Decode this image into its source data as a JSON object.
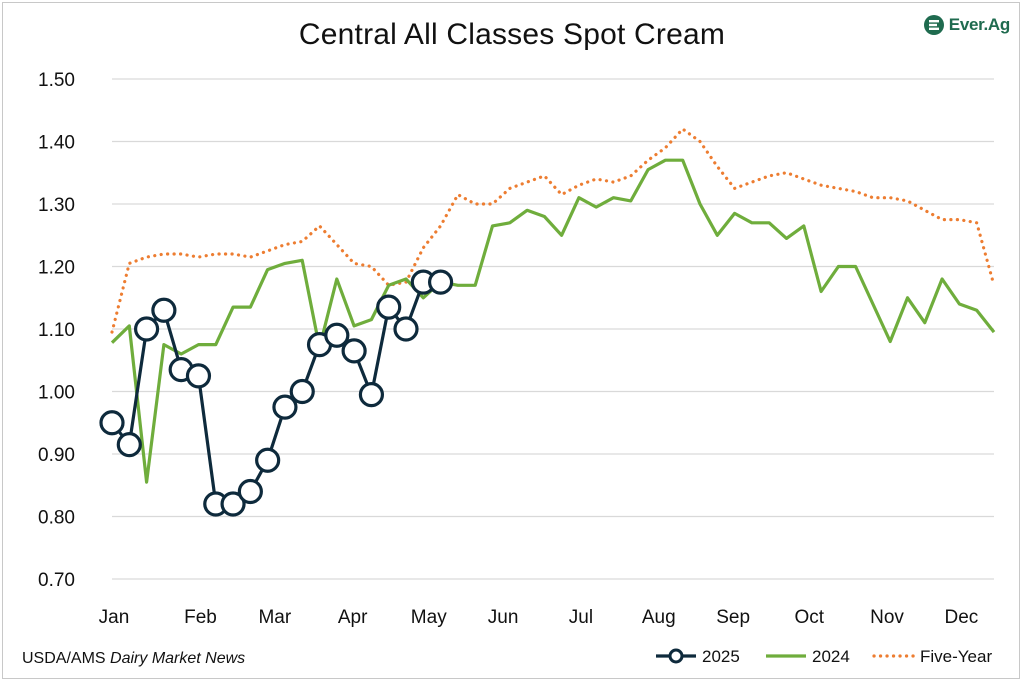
{
  "logo": {
    "text": "Ever.Ag",
    "color": "#1f6b4f"
  },
  "source": {
    "prefix": "USDA/AMS",
    "italic": "Dairy Market News"
  },
  "colors": {
    "s2025": "#0e2a3c",
    "s2024": "#6fad3c",
    "five_year": "#ed7d31",
    "grid": "#d9d9d9"
  },
  "chart_data": {
    "type": "line",
    "title": "Central All Classes Spot Cream",
    "xlabel": "",
    "ylabel": "",
    "ylim": [
      0.7,
      1.5
    ],
    "y_ticks": [
      "0.70",
      "0.80",
      "0.90",
      "1.00",
      "1.10",
      "1.20",
      "1.30",
      "1.40",
      "1.50"
    ],
    "x_ticks": [
      "Jan",
      "Feb",
      "Mar",
      "Apr",
      "May",
      "Jun",
      "Jul",
      "Aug",
      "Sep",
      "Oct",
      "Nov",
      "Dec"
    ],
    "grid": true,
    "legend": "bottom-right",
    "series": [
      {
        "name": "2025",
        "style": "line-circle-markers",
        "x": [
          1,
          2,
          3,
          4,
          5,
          6,
          7,
          8,
          9,
          10,
          11,
          12,
          13,
          14,
          15,
          16,
          17,
          18,
          19,
          20
        ],
        "values": [
          0.95,
          0.915,
          1.1,
          1.13,
          1.035,
          1.025,
          0.82,
          0.82,
          0.84,
          0.89,
          0.975,
          1.0,
          1.075,
          1.09,
          1.065,
          0.995,
          1.135,
          1.1,
          1.175,
          1.175
        ]
      },
      {
        "name": "2024",
        "style": "solid",
        "x": [
          1,
          2,
          3,
          4,
          5,
          6,
          7,
          8,
          9,
          10,
          11,
          12,
          13,
          14,
          15,
          16,
          17,
          18,
          19,
          20,
          21,
          22,
          23,
          24,
          25,
          26,
          27,
          28,
          29,
          30,
          31,
          32,
          33,
          34,
          35,
          36,
          37,
          38,
          39,
          40,
          41,
          42,
          43,
          44,
          45,
          46,
          47,
          48,
          49,
          50,
          51,
          52
        ],
        "values": [
          1.078,
          1.105,
          0.855,
          1.075,
          1.06,
          1.075,
          1.075,
          1.135,
          1.135,
          1.195,
          1.205,
          1.21,
          1.07,
          1.18,
          1.105,
          1.115,
          1.17,
          1.18,
          1.15,
          1.175,
          1.17,
          1.17,
          1.265,
          1.27,
          1.29,
          1.28,
          1.25,
          1.31,
          1.295,
          1.31,
          1.305,
          1.355,
          1.37,
          1.37,
          1.3,
          1.25,
          1.285,
          1.27,
          1.27,
          1.245,
          1.265,
          1.16,
          1.2,
          1.2,
          1.14,
          1.08,
          1.15,
          1.11,
          1.18,
          1.14,
          1.13,
          1.095
        ]
      },
      {
        "name": "Five-Year",
        "style": "dotted",
        "x": [
          1,
          2,
          3,
          4,
          5,
          6,
          7,
          8,
          9,
          10,
          11,
          12,
          13,
          14,
          15,
          16,
          17,
          18,
          19,
          20,
          21,
          22,
          23,
          24,
          25,
          26,
          27,
          28,
          29,
          30,
          31,
          32,
          33,
          34,
          35,
          36,
          37,
          38,
          39,
          40,
          41,
          42,
          43,
          44,
          45,
          46,
          47,
          48,
          49,
          50,
          51,
          52
        ],
        "values": [
          1.095,
          1.205,
          1.215,
          1.22,
          1.22,
          1.215,
          1.22,
          1.22,
          1.215,
          1.225,
          1.235,
          1.24,
          1.265,
          1.235,
          1.205,
          1.2,
          1.17,
          1.175,
          1.23,
          1.265,
          1.315,
          1.3,
          1.3,
          1.325,
          1.335,
          1.345,
          1.315,
          1.33,
          1.34,
          1.335,
          1.345,
          1.37,
          1.39,
          1.42,
          1.4,
          1.36,
          1.325,
          1.335,
          1.345,
          1.35,
          1.34,
          1.33,
          1.325,
          1.32,
          1.31,
          1.31,
          1.305,
          1.29,
          1.275,
          1.275,
          1.27,
          1.17
        ]
      }
    ]
  }
}
